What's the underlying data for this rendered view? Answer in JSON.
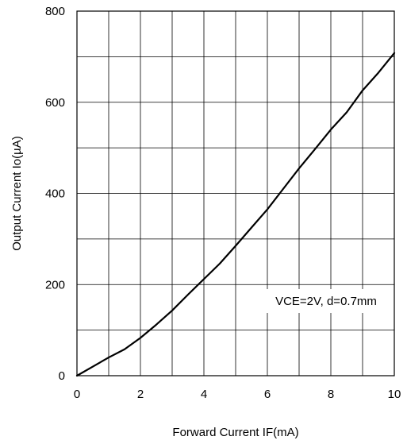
{
  "chart_data": {
    "type": "line",
    "title": "",
    "xlabel": "Forward Current IF(mA)",
    "ylabel": "Output Current Io(µA)",
    "xlim": [
      0,
      10
    ],
    "ylim": [
      0,
      800
    ],
    "x_ticks": [
      "0",
      "2",
      "4",
      "6",
      "8",
      "10"
    ],
    "y_ticks": [
      "0",
      "200",
      "400",
      "600",
      "800"
    ],
    "grid": true,
    "annotation": "VCE=2V, d=0.7mm",
    "line_color": "#000000",
    "series": [
      {
        "x": [
          0,
          0.5,
          1,
          1.5,
          2,
          2.5,
          3,
          3.5,
          4,
          4.5,
          5,
          5.5,
          6,
          6.5,
          7,
          7.5,
          8,
          8.5,
          9,
          9.5,
          10
        ],
        "y": [
          0,
          20,
          40,
          58,
          83,
          112,
          143,
          178,
          212,
          246,
          285,
          325,
          365,
          410,
          455,
          497,
          540,
          578,
          626,
          665,
          708
        ]
      }
    ]
  }
}
